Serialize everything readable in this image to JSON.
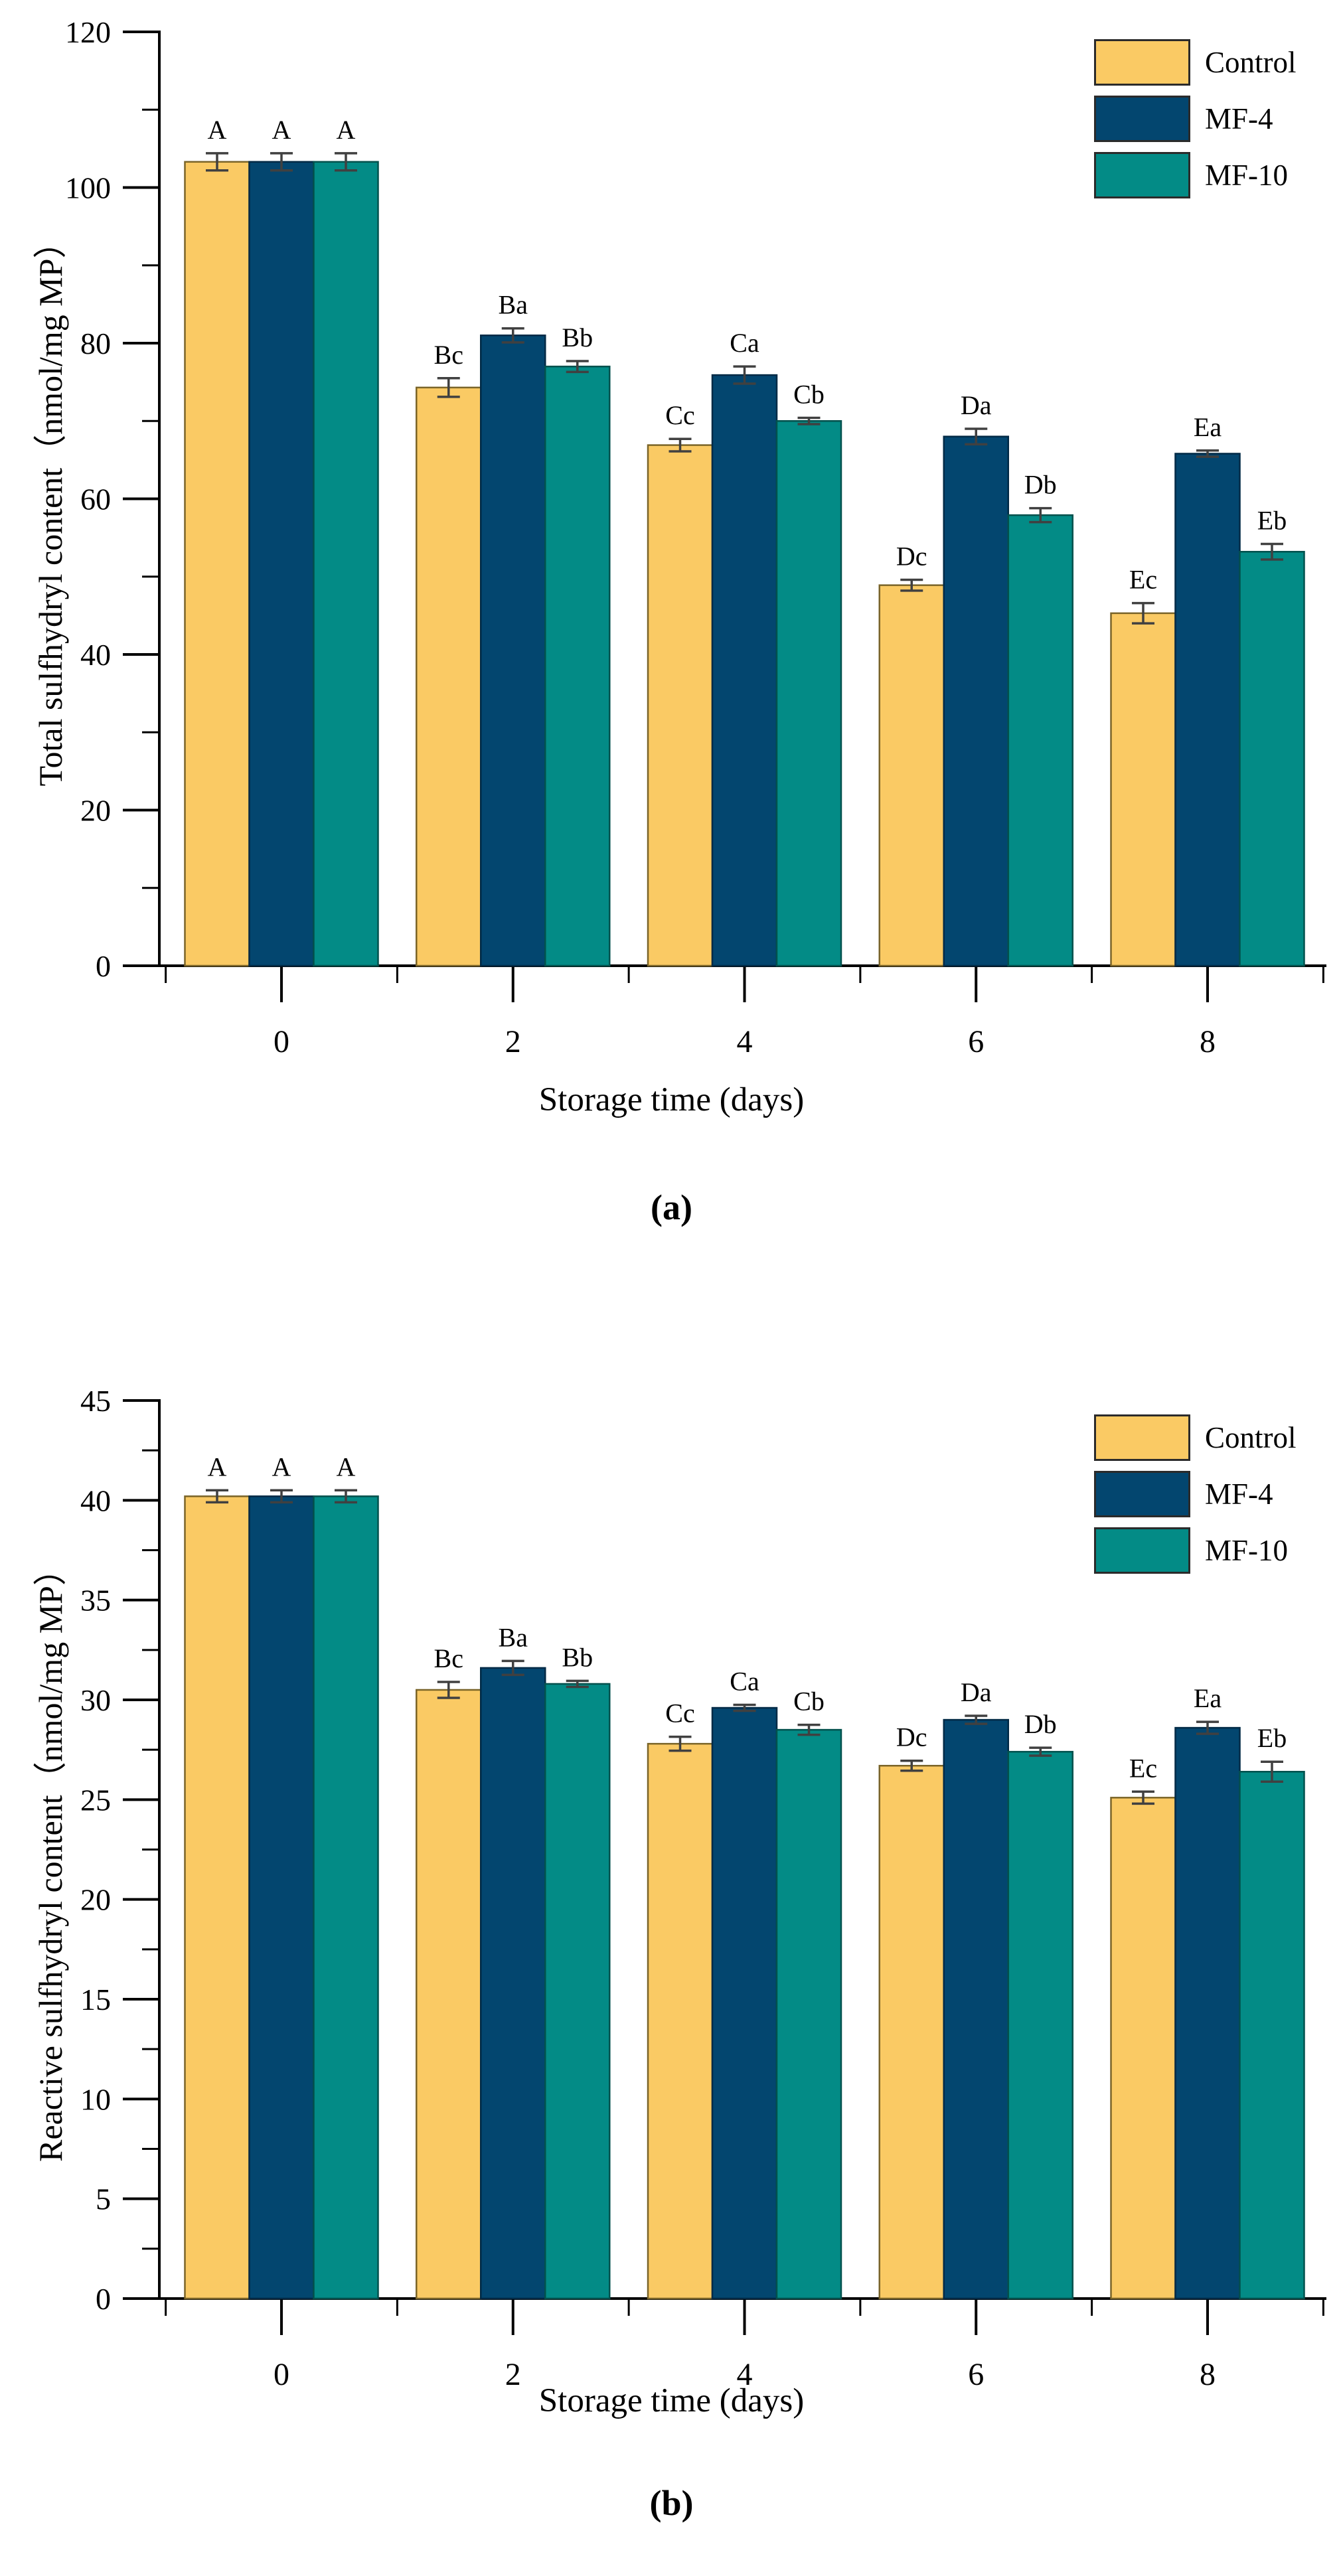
{
  "figure": {
    "background": "#ffffff",
    "caption_a": "(a)",
    "caption_b": "(b)"
  },
  "colors": {
    "series": [
      "#FACA64",
      "#03466F",
      "#038B86"
    ],
    "series_stroke": [
      "#7a6428",
      "#012a46",
      "#02514d"
    ],
    "error_bar": "#404040",
    "axis": "#000000",
    "text": "#000000"
  },
  "chart_data": [
    {
      "id": "a",
      "type": "bar",
      "caption": "(a)",
      "ylabel": "Total sulfhydryl content（nmol/mg MP）",
      "xlabel": "Storage time (days)",
      "ylim": [
        0,
        120
      ],
      "ytick_step": 20,
      "yminor_step": 10,
      "grid": false,
      "legend_position": "top-right",
      "categories": [
        "0",
        "2",
        "4",
        "6",
        "8"
      ],
      "series": [
        {
          "name": "Control",
          "values": [
            103.3,
            74.3,
            66.9,
            48.9,
            45.3
          ],
          "errors": [
            1.1,
            1.2,
            0.8,
            0.7,
            1.3
          ],
          "letters": [
            "A",
            "Bc",
            "Cc",
            "Dc",
            "Ec"
          ]
        },
        {
          "name": "MF-4",
          "values": [
            103.3,
            81.0,
            75.9,
            68.0,
            65.8
          ],
          "errors": [
            1.1,
            0.9,
            1.1,
            1.0,
            0.4
          ],
          "letters": [
            "A",
            "Ba",
            "Ca",
            "Da",
            "Ea"
          ]
        },
        {
          "name": "MF-10",
          "values": [
            103.3,
            77.0,
            70.0,
            57.9,
            53.2
          ],
          "errors": [
            1.1,
            0.7,
            0.4,
            0.9,
            1.0
          ],
          "letters": [
            "A",
            "Bb",
            "Cb",
            "Db",
            "Eb"
          ]
        }
      ]
    },
    {
      "id": "b",
      "type": "bar",
      "caption": "(b)",
      "ylabel": "Reactive sulfhydryl content（nmol/mg MP）",
      "xlabel": "Storage time (days)",
      "ylim": [
        0,
        45
      ],
      "ytick_step": 5,
      "yminor_step": 2.5,
      "grid": false,
      "legend_position": "top-right",
      "categories": [
        "0",
        "2",
        "4",
        "6",
        "8"
      ],
      "series": [
        {
          "name": "Control",
          "values": [
            40.2,
            30.5,
            27.8,
            26.7,
            25.1
          ],
          "errors": [
            0.3,
            0.4,
            0.35,
            0.25,
            0.3
          ],
          "letters": [
            "A",
            "Bc",
            "Cc",
            "Dc",
            "Ec"
          ]
        },
        {
          "name": "MF-4",
          "values": [
            40.2,
            31.6,
            29.6,
            29.0,
            28.6
          ],
          "errors": [
            0.3,
            0.35,
            0.15,
            0.2,
            0.3
          ],
          "letters": [
            "A",
            "Ba",
            "Ca",
            "Da",
            "Ea"
          ]
        },
        {
          "name": "MF-10",
          "values": [
            40.2,
            30.8,
            28.5,
            27.4,
            26.4
          ],
          "errors": [
            0.3,
            0.15,
            0.25,
            0.2,
            0.5
          ],
          "letters": [
            "A",
            "Bb",
            "Cb",
            "Db",
            "Eb"
          ]
        }
      ]
    }
  ]
}
